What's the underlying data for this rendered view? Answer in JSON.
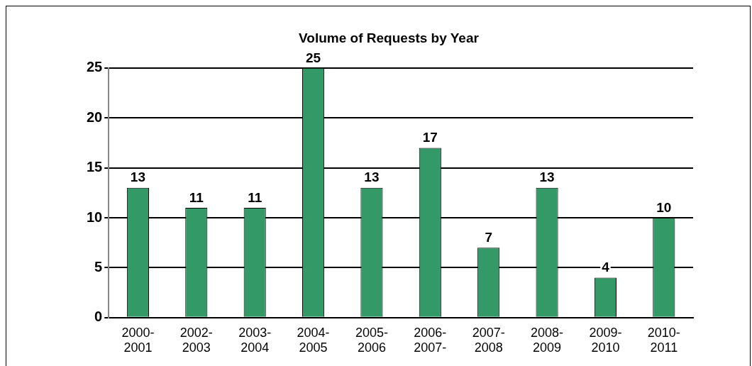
{
  "chart_data": {
    "type": "bar",
    "title": "Volume of Requests by Year",
    "categories": [
      "2000-\n2001",
      "2002-\n2003",
      "2003-\n2004",
      "2004-\n2005",
      "2005-\n2006",
      "2006-\n2007-",
      "2007-\n2008",
      "2008-\n2009",
      "2009-\n2010",
      "2010-\n2011"
    ],
    "values": [
      13,
      11,
      11,
      25,
      13,
      17,
      7,
      13,
      4,
      10
    ],
    "color": "#339966",
    "ylim": [
      0,
      25
    ],
    "yticks": [
      0,
      5,
      10,
      15,
      20,
      25
    ],
    "grid": "y",
    "data_labels": true
  }
}
